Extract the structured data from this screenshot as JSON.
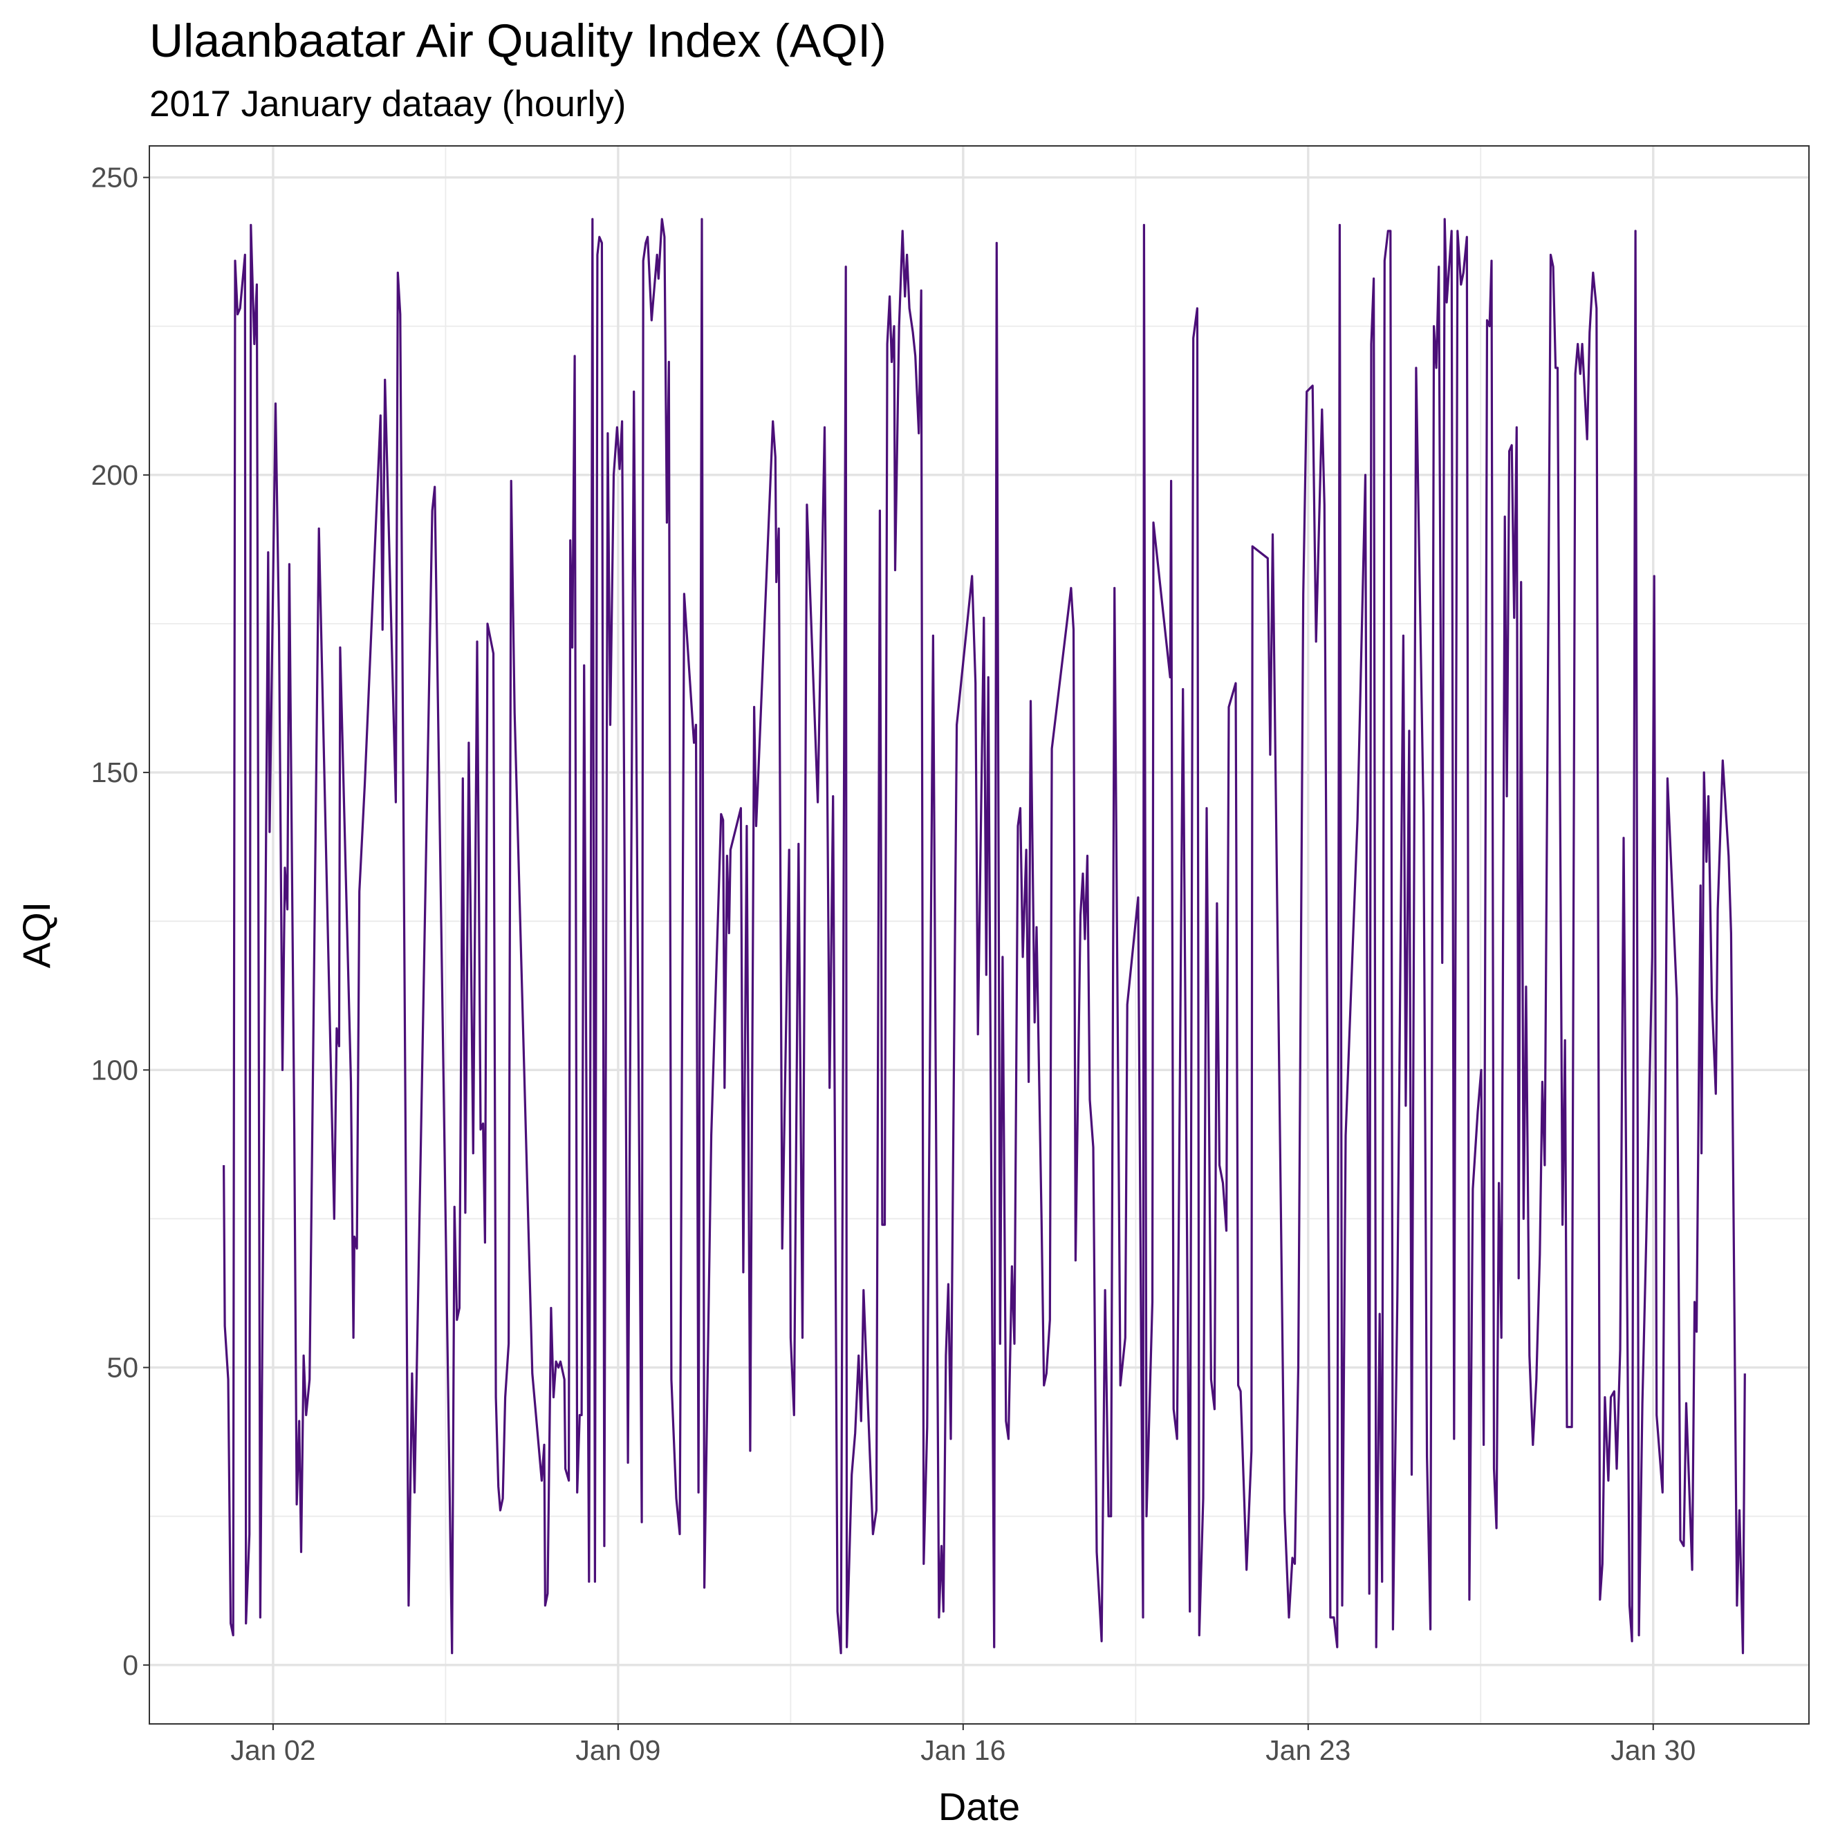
{
  "chart_data": {
    "type": "line",
    "title": "Ulaanbaatar Air Quality Index (AQI)",
    "subtitle": "2017 January dataay (hourly)",
    "x_label": "Date",
    "y_label": "AQI",
    "color": "#4b0f78",
    "grid": true,
    "xlim": [
      -0.51,
      33.16
    ],
    "ylim": [
      -9.9,
      255.3
    ],
    "xticks": [
      {
        "value": 2,
        "label": "Jan 02"
      },
      {
        "value": 9,
        "label": "Jan 09"
      },
      {
        "value": 16,
        "label": "Jan 16"
      },
      {
        "value": 23,
        "label": "Jan 23"
      },
      {
        "value": 30,
        "label": "Jan 30"
      }
    ],
    "yticks": [
      0,
      50,
      100,
      150,
      200,
      250
    ],
    "x": [
      1.0,
      1.02,
      1.09,
      1.14,
      1.19,
      1.23,
      1.28,
      1.33,
      1.43,
      1.45,
      1.52,
      1.55,
      1.62,
      1.67,
      1.74,
      1.9,
      1.93,
      2.05,
      2.12,
      2.19,
      2.24,
      2.29,
      2.33,
      2.43,
      2.48,
      2.53,
      2.57,
      2.62,
      2.67,
      2.74,
      2.93,
      3.24,
      3.29,
      3.34,
      3.36,
      3.58,
      3.63,
      3.65,
      3.7,
      3.75,
      3.86,
      4.18,
      4.22,
      4.27,
      4.49,
      4.53,
      4.58,
      4.75,
      4.82,
      4.87,
      5.23,
      5.28,
      5.63,
      5.68,
      5.73,
      5.78,
      5.85,
      5.9,
      5.97,
      6.06,
      6.14,
      6.21,
      6.26,
      6.3,
      6.35,
      6.47,
      6.52,
      6.57,
      6.61,
      6.66,
      6.71,
      6.78,
      6.83,
      6.9,
      7.26,
      7.45,
      7.5,
      7.52,
      7.57,
      7.64,
      7.69,
      7.74,
      7.79,
      7.83,
      7.91,
      7.93,
      8.0,
      8.03,
      8.07,
      8.12,
      8.17,
      8.22,
      8.26,
      8.31,
      8.41,
      8.48,
      8.53,
      8.58,
      8.62,
      8.67,
      8.72,
      8.79,
      8.84,
      8.91,
      8.98,
      9.03,
      9.08,
      9.2,
      9.32,
      9.48,
      9.51,
      9.56,
      9.6,
      9.68,
      9.79,
      9.82,
      9.89,
      9.94,
      9.99,
      10.03,
      10.08,
      10.18,
      10.25,
      10.34,
      10.54,
      10.58,
      10.63,
      10.7,
      10.75,
      10.89,
      11.09,
      11.13,
      11.16,
      11.21,
      11.25,
      11.28,
      11.49,
      11.54,
      11.61,
      11.68,
      11.76,
      11.8,
      12.14,
      12.19,
      12.21,
      12.26,
      12.33,
      12.47,
      12.5,
      12.57,
      12.66,
      12.74,
      12.83,
      13.05,
      13.19,
      13.29,
      13.36,
      13.45,
      13.52,
      13.62,
      13.64,
      13.74,
      13.81,
      13.88,
      13.93,
      13.98,
      14.17,
      14.24,
      14.31,
      14.36,
      14.41,
      14.46,
      14.51,
      14.55,
      14.6,
      14.62,
      14.7,
      14.77,
      14.82,
      14.86,
      14.91,
      14.98,
      15.03,
      15.1,
      15.15,
      15.2,
      15.27,
      15.39,
      15.51,
      15.56,
      15.6,
      15.65,
      15.7,
      15.75,
      15.87,
      16.18,
      16.25,
      16.3,
      16.42,
      16.47,
      16.51,
      16.63,
      16.68,
      16.75,
      16.8,
      16.87,
      16.92,
      16.99,
      17.04,
      17.11,
      17.16,
      17.21,
      17.28,
      17.33,
      17.37,
      17.45,
      17.49,
      17.59,
      17.64,
      17.69,
      17.76,
      17.8,
      18.19,
      18.24,
      18.28,
      18.38,
      18.43,
      18.47,
      18.52,
      18.57,
      18.64,
      18.71,
      18.81,
      18.88,
      18.95,
      19.0,
      19.07,
      19.19,
      19.29,
      19.33,
      19.55,
      19.65,
      19.67,
      19.72,
      19.84,
      19.86,
      20.2,
      20.22,
      20.27,
      20.34,
      20.46,
      20.6,
      20.67,
      20.75,
      20.79,
      20.87,
      20.94,
      21.03,
      21.1,
      21.15,
      21.2,
      21.27,
      21.34,
      21.39,
      21.53,
      21.58,
      21.63,
      21.75,
      21.85,
      21.87,
      22.18,
      22.23,
      22.28,
      22.52,
      22.61,
      22.68,
      22.73,
      22.8,
      22.9,
      22.97,
      23.09,
      23.16,
      23.28,
      23.33,
      23.45,
      23.52,
      23.59,
      23.64,
      23.69,
      23.76,
      24.0,
      24.16,
      24.24,
      24.28,
      24.33,
      24.38,
      24.45,
      24.5,
      24.55,
      24.62,
      24.67,
      24.72,
      24.81,
      24.93,
      24.98,
      25.05,
      25.1,
      25.19,
      25.34,
      25.41,
      25.48,
      25.55,
      25.6,
      25.65,
      25.72,
      25.77,
      25.81,
      25.91,
      25.96,
      26.03,
      26.1,
      26.15,
      26.22,
      26.27,
      26.34,
      26.44,
      26.51,
      26.56,
      26.63,
      26.68,
      26.72,
      26.77,
      26.82,
      26.87,
      26.92,
      26.99,
      27.03,
      27.08,
      27.13,
      27.18,
      27.23,
      27.27,
      27.32,
      27.37,
      27.42,
      27.49,
      27.56,
      27.63,
      27.7,
      27.75,
      27.8,
      27.92,
      27.97,
      28.02,
      28.06,
      28.16,
      28.21,
      28.25,
      28.35,
      28.42,
      28.47,
      28.52,
      28.56,
      28.66,
      28.71,
      28.78,
      28.85,
      28.92,
      28.97,
      29.02,
      29.09,
      29.14,
      29.21,
      29.26,
      29.33,
      29.4,
      29.52,
      29.57,
      29.64,
      29.71,
      29.78,
      29.86,
      29.98,
      30.02,
      30.07,
      30.19,
      30.29,
      30.48,
      30.55,
      30.62,
      30.67,
      30.79,
      30.84,
      30.88,
      30.96,
      30.98,
      31.03,
      31.08,
      31.12,
      31.19,
      31.27,
      31.31,
      31.41,
      31.53,
      31.58,
      31.7,
      31.75,
      31.82,
      31.86
    ],
    "values": [
      84,
      57,
      48,
      7,
      5,
      236,
      227,
      228,
      237,
      7,
      22,
      242,
      222,
      232,
      8,
      187,
      140,
      212,
      174,
      100,
      134,
      127,
      185,
      90,
      27,
      41,
      19,
      52,
      42,
      48,
      191,
      75,
      107,
      104,
      171,
      98,
      55,
      72,
      70,
      130,
      148,
      210,
      174,
      216,
      145,
      234,
      227,
      10,
      49,
      29,
      194,
      198,
      2,
      77,
      58,
      60,
      149,
      76,
      155,
      86,
      172,
      90,
      91,
      71,
      175,
      170,
      45,
      30,
      26,
      28,
      45,
      54,
      199,
      160,
      49,
      31,
      37,
      10,
      12,
      60,
      45,
      51,
      50,
      51,
      48,
      33,
      31,
      189,
      171,
      220,
      29,
      42,
      42,
      168,
      14,
      243,
      14,
      237,
      240,
      239,
      20,
      207,
      158,
      200,
      208,
      201,
      209,
      34,
      214,
      24,
      236,
      239,
      240,
      226,
      237,
      233,
      243,
      240,
      192,
      219,
      48,
      28,
      22,
      180,
      155,
      158,
      29,
      243,
      13,
      89,
      143,
      142,
      97,
      136,
      123,
      137,
      144,
      66,
      141,
      36,
      161,
      141,
      209,
      203,
      182,
      191,
      70,
      137,
      55,
      42,
      138,
      55,
      195,
      145,
      208,
      97,
      146,
      9,
      2,
      235,
      3,
      32,
      39,
      52,
      41,
      63,
      22,
      26,
      194,
      74,
      74,
      222,
      230,
      219,
      225,
      184,
      225,
      241,
      230,
      237,
      228,
      224,
      220,
      207,
      231,
      17,
      40,
      173,
      8,
      20,
      9,
      52,
      64,
      38,
      158,
      183,
      165,
      106,
      176,
      116,
      166,
      3,
      239,
      54,
      119,
      41,
      38,
      67,
      54,
      141,
      144,
      119,
      137,
      98,
      162,
      108,
      124,
      75,
      47,
      49,
      58,
      154,
      181,
      174,
      68,
      126,
      133,
      122,
      136,
      95,
      87,
      19,
      4,
      63,
      25,
      25,
      181,
      47,
      55,
      111,
      129,
      8,
      242,
      25,
      61,
      192,
      166,
      199,
      43,
      38,
      164,
      9,
      223,
      228,
      5,
      28,
      144,
      48,
      43,
      128,
      84,
      81,
      73,
      161,
      165,
      47,
      46,
      16,
      36,
      188,
      186,
      153,
      190,
      26,
      8,
      18,
      17,
      50,
      180,
      214,
      215,
      172,
      211,
      195,
      8,
      8,
      3,
      242,
      10,
      89,
      142,
      200,
      12,
      222,
      233,
      3,
      59,
      14,
      236,
      241,
      241,
      6,
      62,
      173,
      94,
      157,
      32,
      218,
      143,
      35,
      6,
      225,
      218,
      235,
      118,
      243,
      229,
      241,
      38,
      241,
      232,
      234,
      240,
      11,
      80,
      93,
      100,
      37,
      226,
      225,
      236,
      33,
      23,
      81,
      55,
      193,
      146,
      204,
      205,
      176,
      208,
      65,
      182,
      75,
      114,
      52,
      37,
      48,
      69,
      98,
      84,
      237,
      235,
      218,
      218,
      74,
      105,
      40,
      40,
      217,
      222,
      217,
      222,
      206,
      224,
      234,
      228,
      11,
      17,
      45,
      31,
      45,
      46,
      33,
      53,
      139,
      10,
      4,
      241,
      5,
      44,
      72,
      119,
      183,
      42,
      29,
      149,
      112,
      21,
      20,
      44,
      16,
      61,
      56,
      131,
      86,
      150,
      135,
      146,
      112,
      96,
      127,
      152,
      136,
      123,
      10,
      26,
      2,
      49
    ]
  }
}
